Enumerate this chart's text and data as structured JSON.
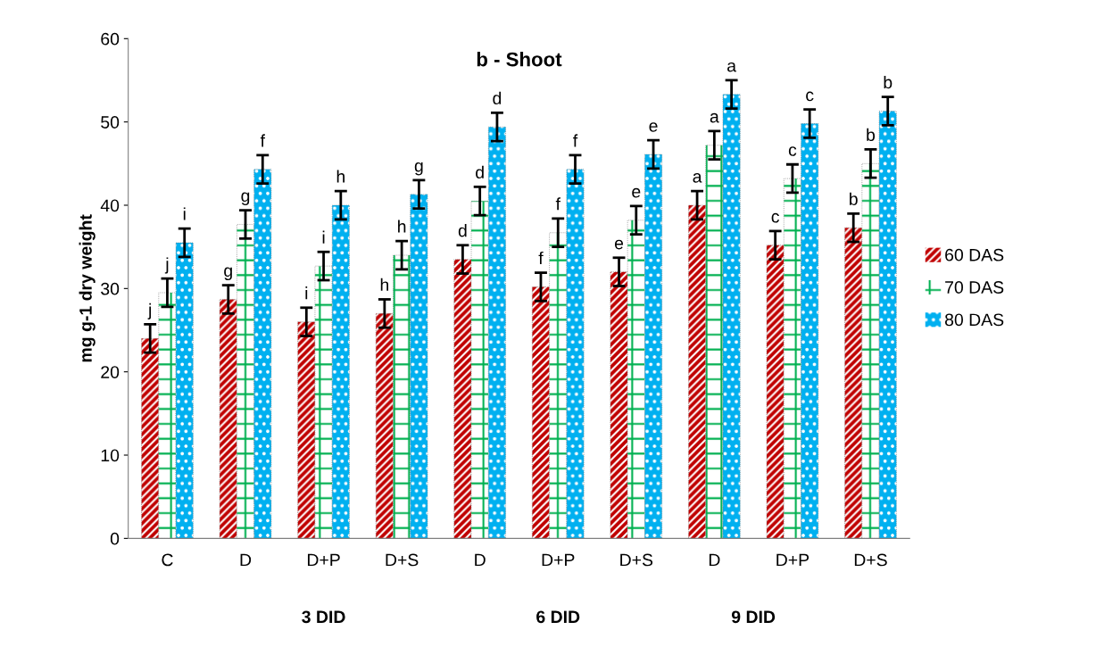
{
  "chart_data": {
    "type": "bar",
    "title": "b - Shoot",
    "ylabel": "mg g-1 dry weight",
    "categories": [
      "C",
      "D",
      "D+P",
      "D+S",
      "D",
      "D+P",
      "D+S",
      "D",
      "D+P",
      "D+S"
    ],
    "series": [
      {
        "name": "60 DAS",
        "color": "#c00000",
        "values": [
          24,
          28.7,
          26,
          27,
          33.5,
          30.2,
          32,
          40,
          35.2,
          37.3
        ],
        "errors": [
          1.7,
          1.7,
          1.7,
          1.7,
          1.7,
          1.7,
          1.7,
          1.7,
          1.7,
          1.7
        ],
        "value_labels": [
          "j",
          "g",
          "i",
          "h",
          "d",
          "f",
          "e",
          "a",
          "c",
          "b"
        ]
      },
      {
        "name": "70 DAS",
        "color": "#00b050",
        "values": [
          29.5,
          37.7,
          32.7,
          34,
          40.5,
          36.7,
          38.2,
          47.2,
          43.2,
          45
        ],
        "errors": [
          1.7,
          1.7,
          1.7,
          1.7,
          1.7,
          1.7,
          1.7,
          1.7,
          1.7,
          1.7
        ],
        "value_labels": [
          "j",
          "g",
          "i",
          "h",
          "d",
          "f",
          "e",
          "a",
          "c",
          "b"
        ]
      },
      {
        "name": "80 DAS",
        "color": "#00b0f0",
        "values": [
          35.5,
          44.3,
          40,
          41.3,
          49.4,
          44.3,
          46.1,
          53.3,
          49.8,
          51.3
        ],
        "errors": [
          1.7,
          1.7,
          1.7,
          1.7,
          1.7,
          1.7,
          1.7,
          1.7,
          1.7,
          1.7
        ],
        "value_labels": [
          "i",
          "f",
          "h",
          "g",
          "d",
          "f",
          "e",
          "a",
          "c",
          "b"
        ]
      }
    ],
    "ylim": [
      0,
      60
    ],
    "yticks": [
      0,
      10,
      20,
      30,
      40,
      50,
      60
    ],
    "grid": false,
    "legend": "right",
    "annotations": [
      "3 DID",
      "6 DID",
      "9 DID"
    ]
  }
}
